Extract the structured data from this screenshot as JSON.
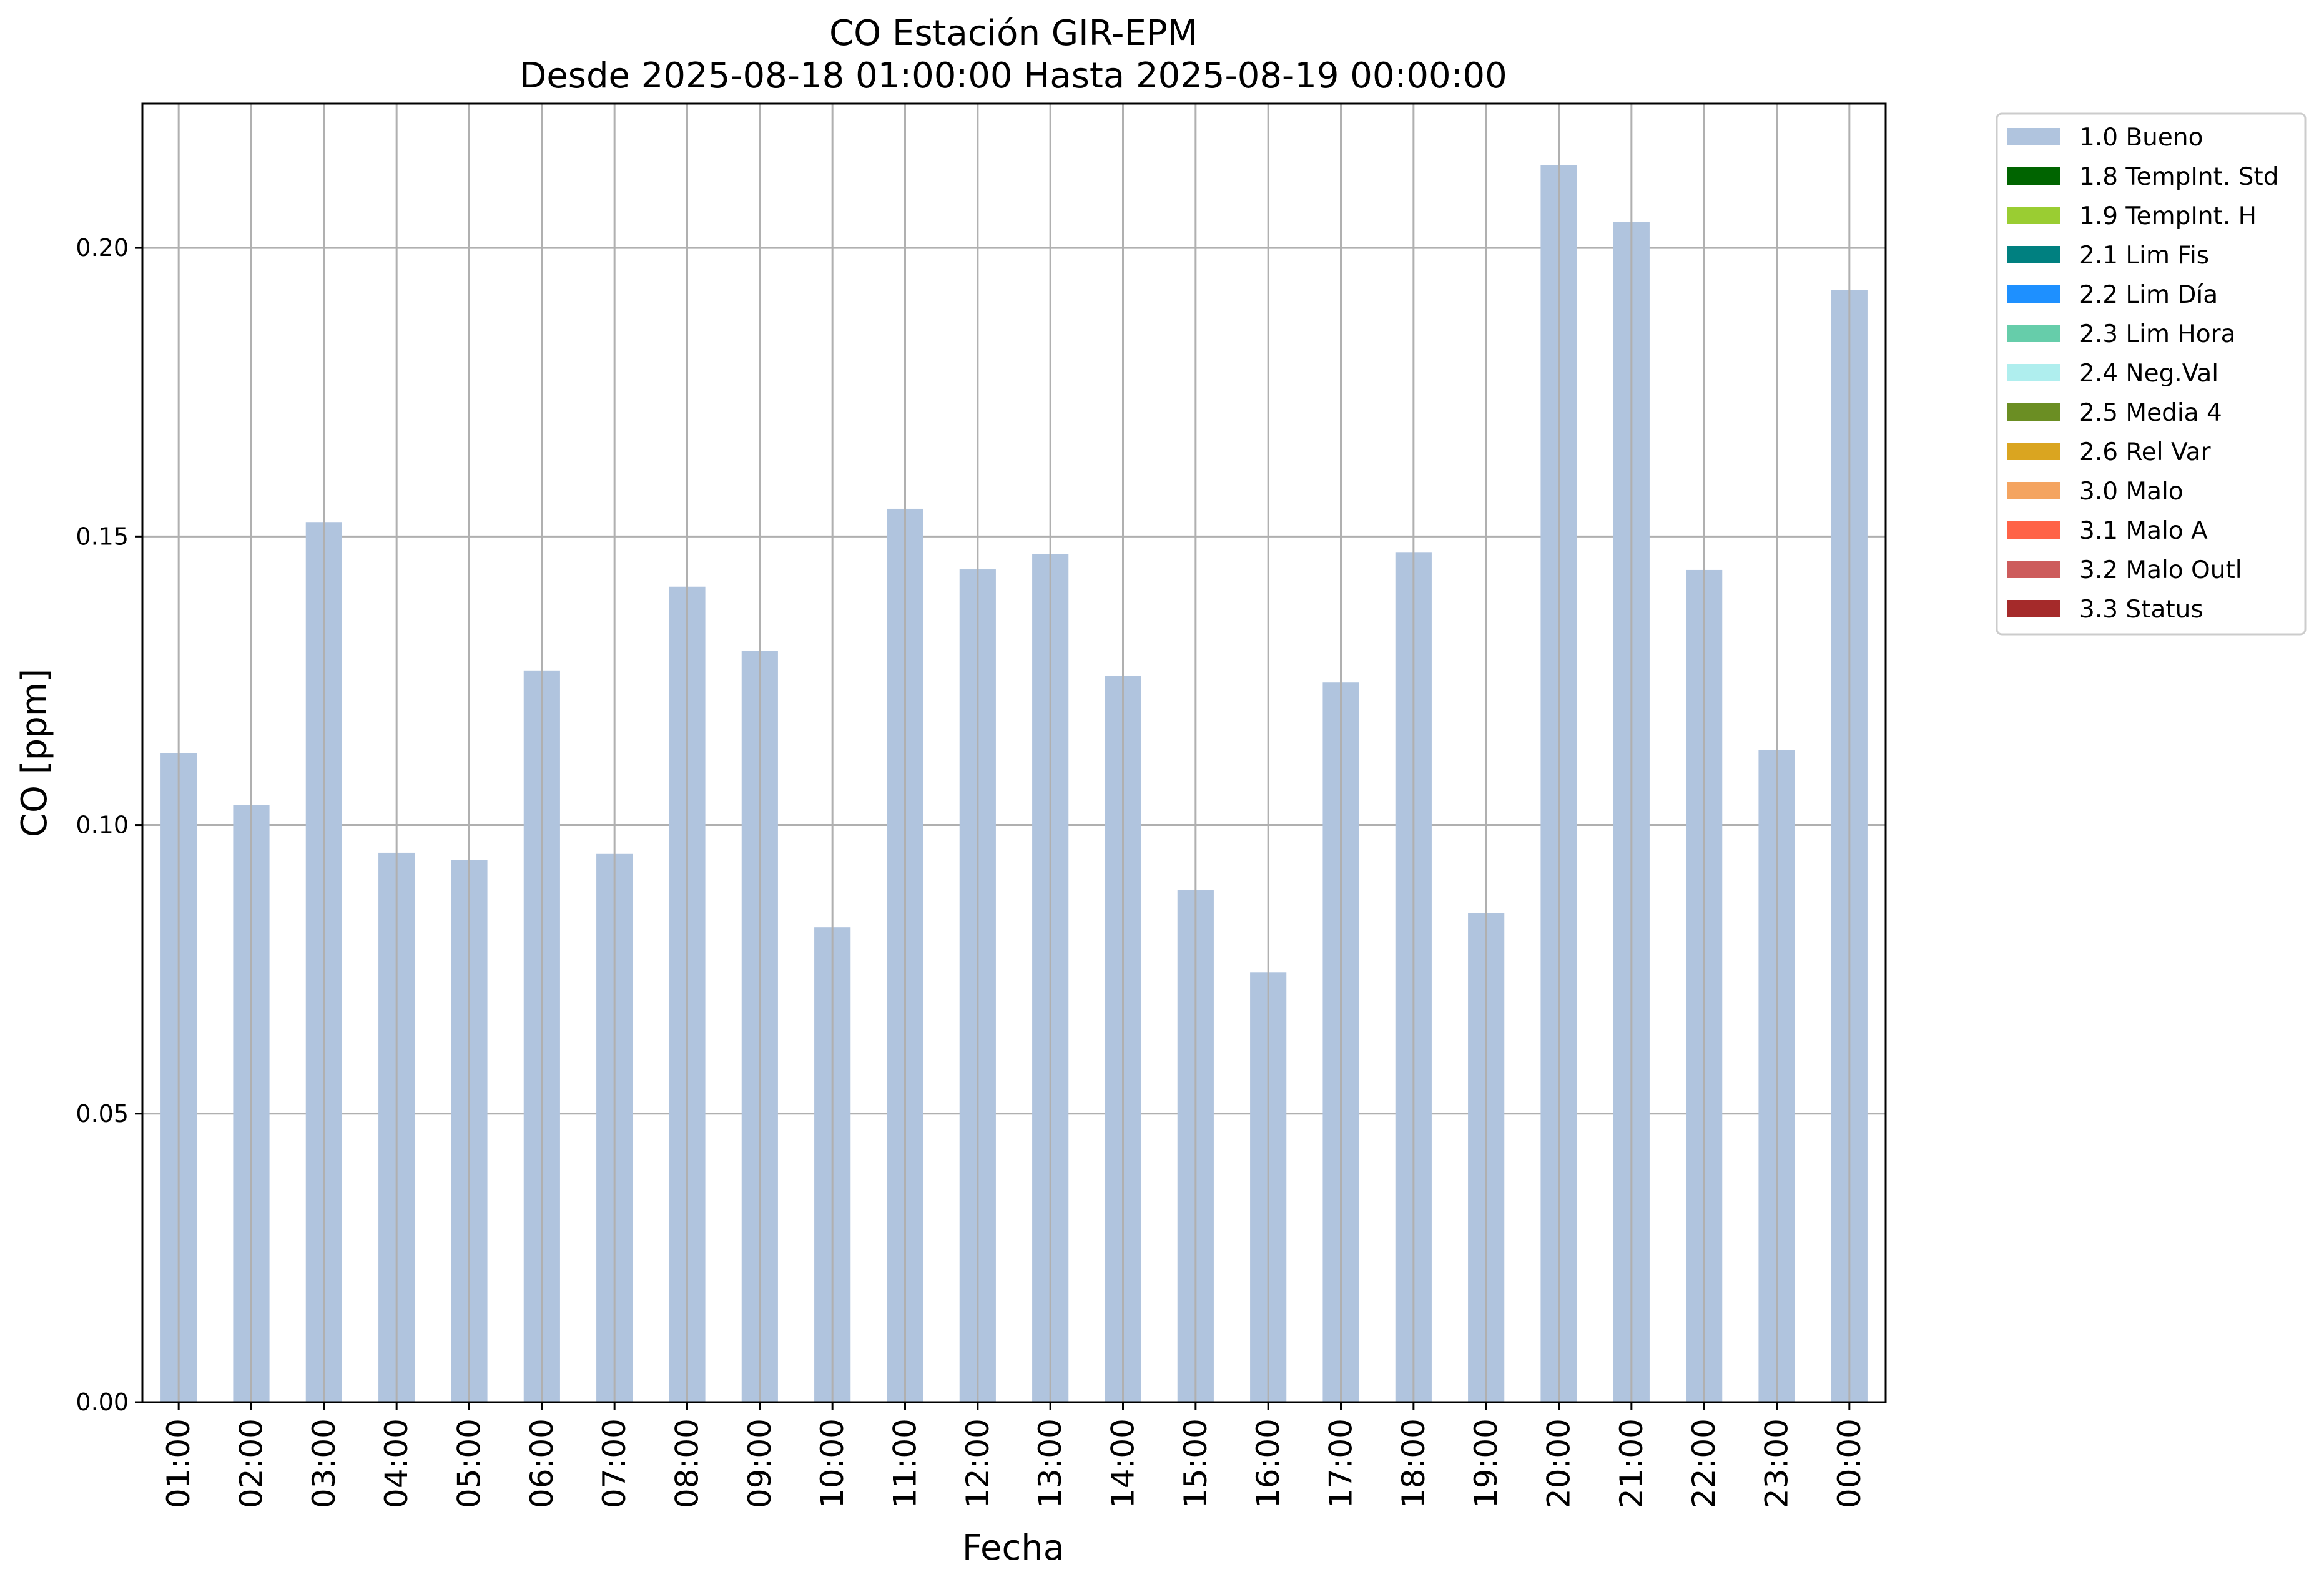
{
  "chart_data": {
    "type": "bar",
    "title": "CO Estación GIR-EPM",
    "subtitle": "Desde 2025-08-18 01:00:00 Hasta 2025-08-19 00:00:00",
    "xlabel": "Fecha",
    "ylabel": "CO [ppm]",
    "ylim": [
      0,
      0.225
    ],
    "yticks": [
      "0.00",
      "0.05",
      "0.10",
      "0.15",
      "0.20"
    ],
    "ytick_values": [
      0.0,
      0.05,
      0.1,
      0.15,
      0.2
    ],
    "grid": true,
    "legend_position": "outside-top-right",
    "categories": [
      "01:00",
      "02:00",
      "03:00",
      "04:00",
      "05:00",
      "06:00",
      "07:00",
      "08:00",
      "09:00",
      "10:00",
      "11:00",
      "12:00",
      "13:00",
      "14:00",
      "15:00",
      "16:00",
      "17:00",
      "18:00",
      "19:00",
      "20:00",
      "21:00",
      "22:00",
      "23:00",
      "00:00"
    ],
    "series": [
      {
        "name": "1.0 Bueno",
        "color": "#b0c4de",
        "values": [
          0.1125,
          0.1035,
          0.1525,
          0.0952,
          0.094,
          0.1268,
          0.095,
          0.1413,
          0.1302,
          0.0823,
          0.1548,
          0.1443,
          0.147,
          0.1259,
          0.0887,
          0.0745,
          0.1247,
          0.1473,
          0.0848,
          0.2143,
          0.2045,
          0.1442,
          0.113,
          0.1927
        ]
      }
    ],
    "legend": [
      {
        "label": "1.0 Bueno",
        "color": "#b0c4de"
      },
      {
        "label": "1.8 TempInt. Std",
        "color": "#006400"
      },
      {
        "label": "1.9 TempInt. H",
        "color": "#9acd32"
      },
      {
        "label": "2.1 Lim Fis",
        "color": "#008080"
      },
      {
        "label": "2.2 Lim Día",
        "color": "#1e90ff"
      },
      {
        "label": "2.3 Lim Hora",
        "color": "#66cdaa"
      },
      {
        "label": "2.4 Neg.Val",
        "color": "#afeeee"
      },
      {
        "label": "2.5 Media 4",
        "color": "#6b8e23"
      },
      {
        "label": "2.6 Rel Var",
        "color": "#daa520"
      },
      {
        "label": "3.0 Malo",
        "color": "#f4a460"
      },
      {
        "label": "3.1 Malo A",
        "color": "#ff6347"
      },
      {
        "label": "3.2 Malo Outl",
        "color": "#cd5c5c"
      },
      {
        "label": "3.3 Status",
        "color": "#a52a2a"
      }
    ]
  }
}
